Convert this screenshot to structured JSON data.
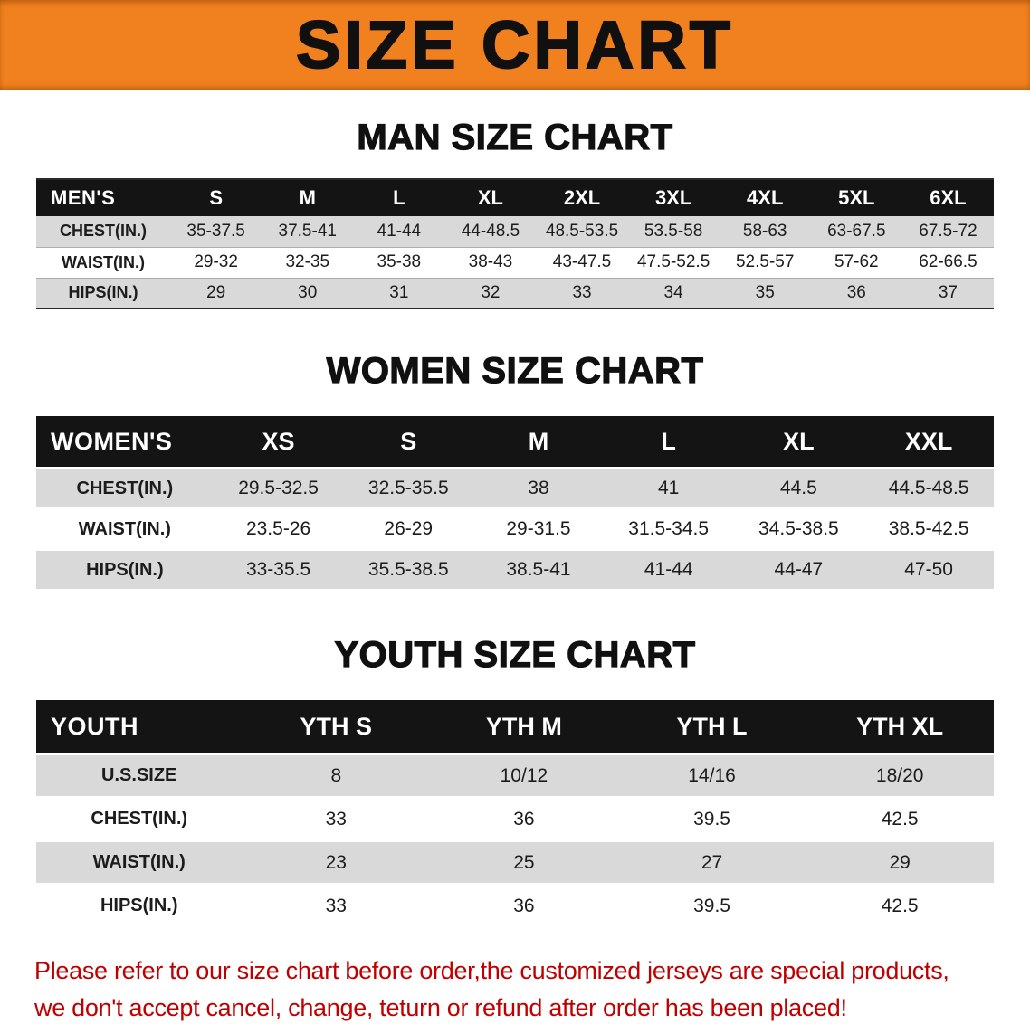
{
  "banner": {
    "title": "SIZE CHART"
  },
  "colors": {
    "banner_bg": "#F1801E",
    "banner_text": "#101010",
    "heading_text": "#101010",
    "table_header_bg": "#141414",
    "table_header_text": "#FFFFFF",
    "row_shade_bg": "#D9D9D9",
    "footer_text": "#C00000"
  },
  "chart_data": [
    {
      "type": "table",
      "title": "MAN SIZE CHART",
      "header_label": "MEN'S",
      "columns": [
        "S",
        "M",
        "L",
        "XL",
        "2XL",
        "3XL",
        "4XL",
        "5XL",
        "6XL"
      ],
      "rows": [
        {
          "label": "CHEST(IN.)",
          "values": [
            "35-37.5",
            "37.5-41",
            "41-44",
            "44-48.5",
            "48.5-53.5",
            "53.5-58",
            "58-63",
            "63-67.5",
            "67.5-72"
          ]
        },
        {
          "label": "WAIST(IN.)",
          "values": [
            "29-32",
            "32-35",
            "35-38",
            "38-43",
            "43-47.5",
            "47.5-52.5",
            "52.5-57",
            "57-62",
            "62-66.5"
          ]
        },
        {
          "label": "HIPS(IN.)",
          "values": [
            "29",
            "30",
            "31",
            "32",
            "33",
            "34",
            "35",
            "36",
            "37"
          ]
        }
      ]
    },
    {
      "type": "table",
      "title": "WOMEN SIZE CHART",
      "header_label": "WOMEN'S",
      "columns": [
        "XS",
        "S",
        "M",
        "L",
        "XL",
        "XXL"
      ],
      "rows": [
        {
          "label": "CHEST(IN.)",
          "values": [
            "29.5-32.5",
            "32.5-35.5",
            "38",
            "41",
            "44.5",
            "44.5-48.5"
          ]
        },
        {
          "label": "WAIST(IN.)",
          "values": [
            "23.5-26",
            "26-29",
            "29-31.5",
            "31.5-34.5",
            "34.5-38.5",
            "38.5-42.5"
          ]
        },
        {
          "label": "HIPS(IN.)",
          "values": [
            "33-35.5",
            "35.5-38.5",
            "38.5-41",
            "41-44",
            "44-47",
            "47-50"
          ]
        }
      ]
    },
    {
      "type": "table",
      "title": "YOUTH SIZE CHART",
      "header_label": "YOUTH",
      "columns": [
        "YTH S",
        "YTH M",
        "YTH L",
        "YTH XL"
      ],
      "rows": [
        {
          "label": "U.S.SIZE",
          "values": [
            "8",
            "10/12",
            "14/16",
            "18/20"
          ]
        },
        {
          "label": "CHEST(IN.)",
          "values": [
            "33",
            "36",
            "39.5",
            "42.5"
          ]
        },
        {
          "label": "WAIST(IN.)",
          "values": [
            "23",
            "25",
            "27",
            "29"
          ]
        },
        {
          "label": "HIPS(IN.)",
          "values": [
            "33",
            "36",
            "39.5",
            "42.5"
          ]
        }
      ]
    }
  ],
  "footer": {
    "line1": "Please refer to our size chart before order,the customized jerseys are special products,",
    "line2": "we don't accept cancel, change, teturn or refund after order has been placed!"
  }
}
